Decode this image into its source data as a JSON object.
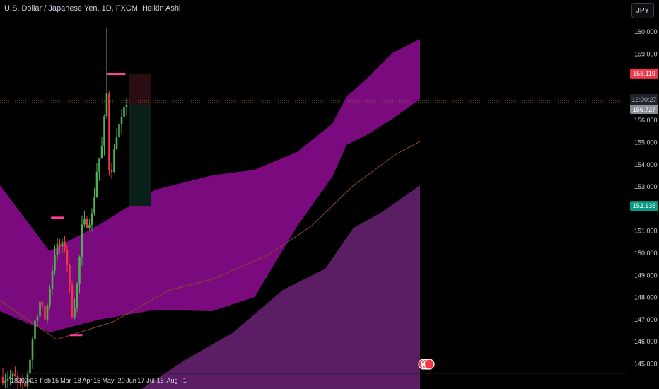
{
  "header": {
    "title": "U.S. Dollar / Japanese Yen, 1D, FXCM, Heikin Ashi",
    "currency_button": "JPY"
  },
  "colors": {
    "background": "#000000",
    "up": "#4caf50",
    "down": "#f23645",
    "band_upper": "#7a0a7e",
    "band_lower": "#5b1d63",
    "level_line": "#ff3fa4",
    "risk_zone": "#2a0d10",
    "reward_zone": "#082019"
  },
  "price_tags": {
    "stop": "158.119",
    "countdown": "13:00:27",
    "current": "156.727",
    "target": "152.138"
  },
  "chart_data": {
    "type": "candlestick",
    "title": "U.S. Dollar / Japanese Yen, 1D, FXCM, Heikin Ashi",
    "y_axis": {
      "ticks": [
        "145.000",
        "146.000",
        "147.000",
        "148.000",
        "149.000",
        "150.000",
        "151.000",
        "152.000",
        "153.000",
        "154.000",
        "155.000",
        "156.000",
        "157.000",
        "158.000",
        "159.000",
        "160.000"
      ],
      "ylim": [
        144.8,
        160.3
      ]
    },
    "x_axis": {
      "ticks": [
        "18",
        "2024",
        "16",
        "Feb",
        "15",
        "Mar",
        "18",
        "Apr",
        "15",
        "May",
        "20",
        "Jun",
        "17",
        "Jul",
        "15",
        "Aug",
        "1"
      ]
    },
    "dates": [
      "2023-12-18",
      "2024-01-02",
      "2024-01-16",
      "2024-02-01",
      "2024-02-15",
      "2024-03-01",
      "2024-03-18",
      "2024-04-01",
      "2024-04-15",
      "2024-05-01",
      "2024-05-20",
      "2024-06-03",
      "2024-06-17",
      "2024-07-01",
      "2024-07-15",
      "2024-08-01",
      "2024-08-19"
    ],
    "price_series": [
      {
        "date": "2023-12-18",
        "value": 144.4
      },
      {
        "date": "2024-01-02",
        "value": 143.8
      },
      {
        "date": "2024-01-10",
        "value": 145.3
      },
      {
        "date": "2024-01-16",
        "value": 146.8
      },
      {
        "date": "2024-01-24",
        "value": 147.8
      },
      {
        "date": "2024-02-01",
        "value": 147.0
      },
      {
        "date": "2024-02-09",
        "value": 148.9
      },
      {
        "date": "2024-02-15",
        "value": 150.2
      },
      {
        "date": "2024-02-22",
        "value": 150.3
      },
      {
        "date": "2024-03-01",
        "value": 150.3
      },
      {
        "date": "2024-03-06",
        "value": 148.6
      },
      {
        "date": "2024-03-11",
        "value": 147.1
      },
      {
        "date": "2024-03-18",
        "value": 148.7
      },
      {
        "date": "2024-03-25",
        "value": 151.3
      },
      {
        "date": "2024-04-01",
        "value": 151.4
      },
      {
        "date": "2024-04-08",
        "value": 151.7
      },
      {
        "date": "2024-04-15",
        "value": 153.8
      },
      {
        "date": "2024-04-22",
        "value": 154.8
      },
      {
        "date": "2024-04-29",
        "value": 157.2
      },
      {
        "date": "2024-05-03",
        "value": 153.5
      },
      {
        "date": "2024-05-07",
        "value": 154.0
      },
      {
        "date": "2024-05-14",
        "value": 155.6
      },
      {
        "date": "2024-05-20",
        "value": 155.9
      },
      {
        "date": "2024-05-28",
        "value": 156.9
      },
      {
        "date": "2024-05-31",
        "value": 156.727
      }
    ],
    "annotations": {
      "horizontal_levels": [
        {
          "from": "2024-02-09",
          "to": "2024-02-27",
          "value": 151.6
        },
        {
          "from": "2024-03-07",
          "to": "2024-03-25",
          "value": 146.3
        },
        {
          "from": "2024-04-29",
          "to": "2024-05-26",
          "value": 158.1
        }
      ],
      "position_tool": {
        "entry": 156.727,
        "stop": 158.119,
        "target": 152.138,
        "from": "2024-05-31",
        "to": "2024-07-01"
      }
    }
  }
}
